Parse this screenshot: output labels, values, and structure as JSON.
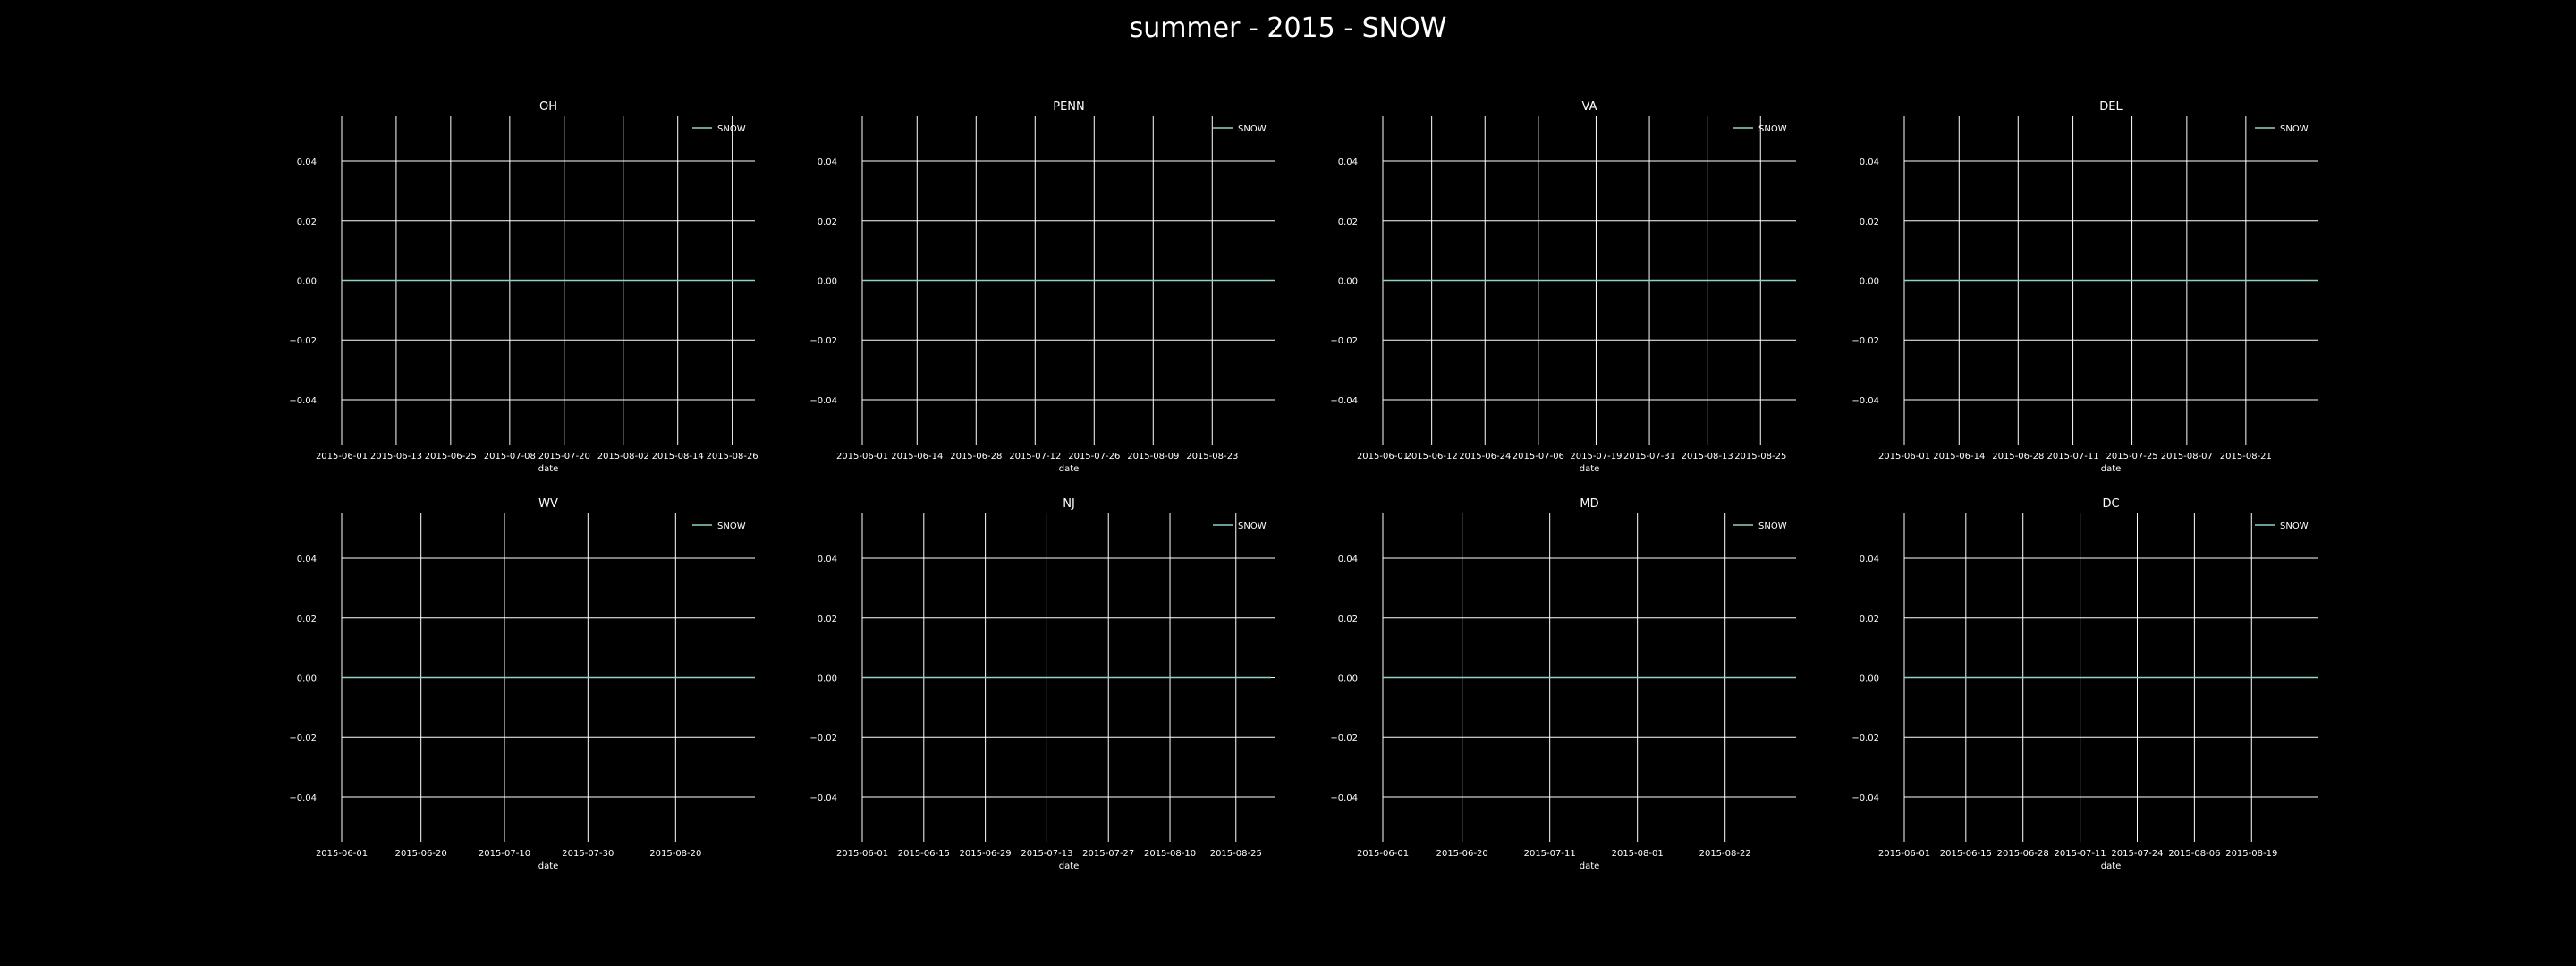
{
  "figure": {
    "title": "summer - 2015 - SNOW",
    "background": "#000000",
    "foreground": "#ffffff",
    "series_color": "#8dd3c7",
    "grid": true
  },
  "chart_data": [
    {
      "type": "line",
      "title": "OH",
      "xlabel": "date",
      "ylabel": "",
      "ylim": [
        -0.055,
        0.055
      ],
      "yticks": [
        "0.04",
        "0.02",
        "0.00",
        "−0.02",
        "−0.04"
      ],
      "xlim": [
        "2015-06-01",
        "2015-08-31"
      ],
      "xticks": [
        "2015-06-01",
        "2015-06-13",
        "2015-06-25",
        "2015-07-08",
        "2015-07-20",
        "2015-08-02",
        "2015-08-14",
        "2015-08-26"
      ],
      "legend": {
        "loc": "upper right",
        "entries": [
          "SNOW"
        ]
      },
      "series": [
        {
          "name": "SNOW",
          "x_start": "2015-06-01",
          "x_end": "2015-08-31",
          "value": 0.0
        }
      ]
    },
    {
      "type": "line",
      "title": "PENN",
      "xlabel": "date",
      "ylabel": "",
      "ylim": [
        -0.055,
        0.055
      ],
      "yticks": [
        "0.04",
        "0.02",
        "0.00",
        "−0.02",
        "−0.04"
      ],
      "xlim": [
        "2015-06-01",
        "2015-09-07"
      ],
      "xticks": [
        "2015-06-01",
        "2015-06-14",
        "2015-06-28",
        "2015-07-12",
        "2015-07-26",
        "2015-08-09",
        "2015-08-23"
      ],
      "legend": {
        "loc": "upper right",
        "entries": [
          "SNOW"
        ]
      },
      "series": [
        {
          "name": "SNOW",
          "x_start": "2015-06-01",
          "x_end": "2015-09-07",
          "value": 0.0
        }
      ]
    },
    {
      "type": "line",
      "title": "VA",
      "xlabel": "date",
      "ylabel": "",
      "ylim": [
        -0.055,
        0.055
      ],
      "yticks": [
        "0.04",
        "0.02",
        "0.00",
        "−0.02",
        "−0.04"
      ],
      "xlim": [
        "2015-06-01",
        "2015-09-02"
      ],
      "xticks": [
        "2015-06-01",
        "2015-06-12",
        "2015-06-24",
        "2015-07-06",
        "2015-07-19",
        "2015-07-31",
        "2015-08-13",
        "2015-08-25"
      ],
      "legend": {
        "loc": "upper right",
        "entries": [
          "SNOW"
        ]
      },
      "series": [
        {
          "name": "SNOW",
          "x_start": "2015-06-01",
          "x_end": "2015-09-02",
          "value": 0.0
        }
      ]
    },
    {
      "type": "line",
      "title": "DEL",
      "xlabel": "date",
      "ylabel": "",
      "ylim": [
        -0.055,
        0.055
      ],
      "yticks": [
        "0.04",
        "0.02",
        "0.00",
        "−0.02",
        "−0.04"
      ],
      "xlim": [
        "2015-06-01",
        "2015-09-07"
      ],
      "xticks": [
        "2015-06-01",
        "2015-06-14",
        "2015-06-28",
        "2015-07-11",
        "2015-07-25",
        "2015-08-07",
        "2015-08-21"
      ],
      "legend": {
        "loc": "upper right",
        "entries": [
          "SNOW"
        ]
      },
      "series": [
        {
          "name": "SNOW",
          "x_start": "2015-06-01",
          "x_end": "2015-09-07",
          "value": 0.0
        }
      ]
    },
    {
      "type": "line",
      "title": "WV",
      "xlabel": "date",
      "ylabel": "",
      "ylim": [
        -0.055,
        0.055
      ],
      "yticks": [
        "0.04",
        "0.02",
        "0.00",
        "−0.02",
        "−0.04"
      ],
      "xlim": [
        "2015-06-01",
        "2015-09-08"
      ],
      "xticks": [
        "2015-06-01",
        "2015-06-20",
        "2015-07-10",
        "2015-07-30",
        "2015-08-20"
      ],
      "legend": {
        "loc": "upper right",
        "entries": [
          "SNOW"
        ]
      },
      "series": [
        {
          "name": "SNOW",
          "x_start": "2015-06-01",
          "x_end": "2015-09-08",
          "value": 0.0
        }
      ]
    },
    {
      "type": "line",
      "title": "NJ",
      "xlabel": "date",
      "ylabel": "",
      "ylim": [
        -0.055,
        0.055
      ],
      "yticks": [
        "0.04",
        "0.02",
        "0.00",
        "−0.02",
        "−0.04"
      ],
      "xlim": [
        "2015-06-01",
        "2015-09-03"
      ],
      "xticks": [
        "2015-06-01",
        "2015-06-15",
        "2015-06-29",
        "2015-07-13",
        "2015-07-27",
        "2015-08-10",
        "2015-08-25"
      ],
      "legend": {
        "loc": "upper right",
        "entries": [
          "SNOW"
        ]
      },
      "series": [
        {
          "name": "SNOW",
          "x_start": "2015-06-01",
          "x_end": "2015-09-02",
          "value": 0.0
        }
      ]
    },
    {
      "type": "line",
      "title": "MD",
      "xlabel": "date",
      "ylabel": "",
      "ylim": [
        -0.055,
        0.055
      ],
      "yticks": [
        "0.04",
        "0.02",
        "0.00",
        "−0.02",
        "−0.04"
      ],
      "xlim": [
        "2015-06-01",
        "2015-09-08"
      ],
      "xticks": [
        "2015-06-01",
        "2015-06-20",
        "2015-07-11",
        "2015-08-01",
        "2015-08-22"
      ],
      "legend": {
        "loc": "upper right",
        "entries": [
          "SNOW"
        ]
      },
      "series": [
        {
          "name": "SNOW",
          "x_start": "2015-06-01",
          "x_end": "2015-09-08",
          "value": 0.0
        }
      ]
    },
    {
      "type": "line",
      "title": "DC",
      "xlabel": "date",
      "ylabel": "",
      "ylim": [
        -0.055,
        0.055
      ],
      "yticks": [
        "0.04",
        "0.02",
        "0.00",
        "−0.02",
        "−0.04"
      ],
      "xlim": [
        "2015-06-01",
        "2015-09-03"
      ],
      "xticks": [
        "2015-06-01",
        "2015-06-15",
        "2015-06-28",
        "2015-07-11",
        "2015-07-24",
        "2015-08-06",
        "2015-08-19"
      ],
      "legend": {
        "loc": "upper right",
        "entries": [
          "SNOW"
        ]
      },
      "series": [
        {
          "name": "SNOW",
          "x_start": "2015-06-01",
          "x_end": "2015-09-03",
          "value": 0.0
        }
      ]
    }
  ]
}
